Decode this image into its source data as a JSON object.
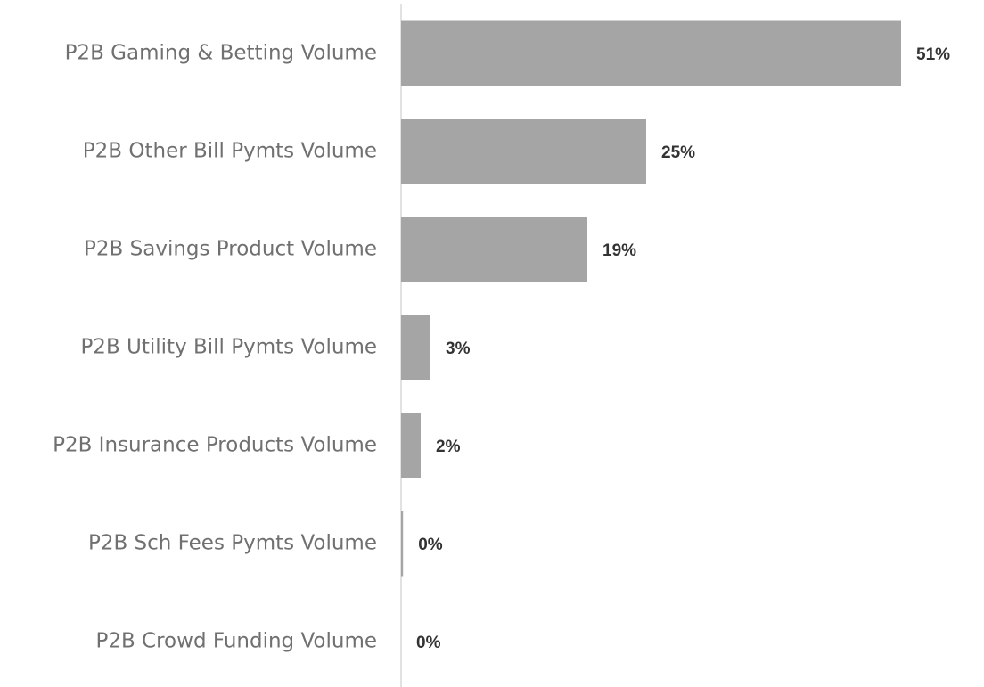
{
  "chart_data": {
    "type": "bar",
    "orientation": "horizontal",
    "categories": [
      "P2B Gaming & Betting Volume",
      "P2B Other Bill Pymts Volume",
      "P2B Savings Product Volume",
      "P2B Utility Bill Pymts Volume",
      "P2B Insurance Products Volume",
      "P2B Sch Fees Pymts Volume",
      "P2B Crowd Funding Volume"
    ],
    "values": [
      51,
      25,
      19,
      3,
      2,
      0.2,
      0
    ],
    "value_labels": [
      "51%",
      "25%",
      "19%",
      "3%",
      "2%",
      "0%",
      "0%"
    ],
    "color": "#a5a5a5"
  }
}
